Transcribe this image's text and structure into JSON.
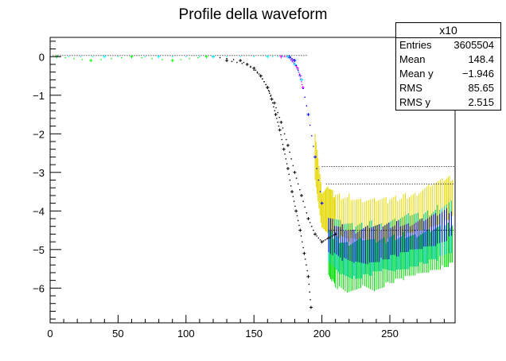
{
  "chart_data": {
    "type": "scatter",
    "title": "Profile della waveform",
    "xlabel": "",
    "ylabel": "",
    "xlim": [
      0,
      298
    ],
    "ylim": [
      -6.9,
      0.5
    ],
    "x_ticks": [
      0,
      50,
      100,
      150,
      200,
      250
    ],
    "y_ticks": [
      0,
      -1,
      -2,
      -3,
      -4,
      -5,
      -6
    ],
    "y_tick_labels": [
      "0",
      "−1",
      "−2",
      "−3",
      "−4",
      "−5",
      "−6"
    ],
    "grid": false,
    "legend": "none",
    "stats": {
      "title": "x10",
      "rows": [
        {
          "key": "Entries",
          "value": "3605504"
        },
        {
          "key": "Mean",
          "value": "148.4"
        },
        {
          "key": "Mean y",
          "value": "−1.946"
        },
        {
          "key": "RMS",
          "value": "85.65"
        },
        {
          "key": "RMS y",
          "value": "2.515"
        }
      ]
    },
    "series": [
      {
        "color": "#000000",
        "marker": "+",
        "x": [
          120,
          140,
          150,
          155,
          160,
          163,
          166,
          169,
          172,
          175,
          178,
          181,
          184,
          187,
          190,
          192
        ],
        "y": [
          0.0,
          -0.1,
          -0.3,
          -0.5,
          -0.8,
          -1.1,
          -1.5,
          -1.9,
          -2.4,
          -2.9,
          -3.5,
          -4.0,
          -4.5,
          -5.1,
          -5.7,
          -6.5
        ]
      },
      {
        "color": "#000000",
        "marker": "+",
        "x": [
          130,
          145,
          155,
          160,
          165,
          170,
          175,
          180,
          185,
          190,
          195,
          200,
          205,
          210
        ],
        "y": [
          -0.1,
          -0.2,
          -0.5,
          -0.8,
          -1.2,
          -1.7,
          -2.3,
          -3.0,
          -3.6,
          -4.2,
          -4.6,
          -4.8,
          -4.7,
          -4.6
        ]
      },
      {
        "color": "#ff00ff",
        "marker": "+",
        "x": [
          170,
          175,
          178,
          180,
          182,
          184,
          186
        ],
        "y": [
          0.0,
          0.0,
          -0.1,
          -0.2,
          -0.3,
          -0.5,
          -0.8
        ]
      },
      {
        "color": "#0000ff",
        "marker": "+",
        "x": [
          176,
          180,
          185,
          190,
          195,
          200
        ],
        "y": [
          0.0,
          -0.1,
          -0.6,
          -1.5,
          -2.6,
          -3.8
        ]
      },
      {
        "color": "#00ffff",
        "marker": "+",
        "x": [
          5,
          40,
          80,
          120,
          160,
          175,
          180,
          185
        ],
        "y": [
          0.0,
          0.0,
          0.0,
          0.0,
          0.0,
          0.0,
          -0.2,
          -0.6
        ]
      },
      {
        "color": "#00ff00",
        "marker": "+",
        "x": [
          5,
          30,
          60,
          90,
          115
        ],
        "y": [
          0.0,
          -0.1,
          0.0,
          -0.1,
          0.0
        ]
      }
    ],
    "band_series": [
      {
        "name": "yellow",
        "color": "#e6d800",
        "x": [
          195,
          200,
          205,
          210,
          220,
          230,
          240,
          250,
          260,
          270,
          280,
          290,
          297
        ],
        "low": [
          -3.2,
          -4.4,
          -4.5,
          -4.6,
          -4.7,
          -4.7,
          -4.8,
          -4.7,
          -4.6,
          -4.5,
          -4.4,
          -4.2,
          -4.1
        ],
        "high": [
          -2.0,
          -3.6,
          -3.5,
          -3.7,
          -3.7,
          -3.8,
          -3.8,
          -3.8,
          -3.7,
          -3.6,
          -3.4,
          -3.3,
          -3.2
        ]
      },
      {
        "name": "green",
        "color": "#00dd00",
        "x": [
          205,
          210,
          220,
          230,
          240,
          250,
          260,
          270,
          280,
          290,
          297
        ],
        "low": [
          -5.6,
          -5.9,
          -6.1,
          -5.9,
          -6.0,
          -5.8,
          -5.7,
          -5.6,
          -5.5,
          -5.4,
          -5.3
        ],
        "high": [
          -4.6,
          -4.8,
          -4.9,
          -4.8,
          -4.9,
          -4.8,
          -4.7,
          -4.7,
          -4.6,
          -4.5,
          -4.4
        ]
      },
      {
        "name": "cyan",
        "color": "#00cccc",
        "x": [
          205,
          215,
          225,
          235,
          245,
          255,
          265,
          275,
          285,
          297
        ],
        "low": [
          -5.3,
          -5.6,
          -5.7,
          -5.6,
          -5.5,
          -5.5,
          -5.4,
          -5.3,
          -5.2,
          -5.0
        ],
        "high": [
          -4.2,
          -4.4,
          -4.5,
          -4.4,
          -4.4,
          -4.3,
          -4.2,
          -4.2,
          -4.0,
          -3.8
        ]
      },
      {
        "name": "blue",
        "color": "#0000ee",
        "x": [
          205,
          215,
          225,
          235,
          245,
          255,
          265,
          275,
          285,
          297
        ],
        "low": [
          -5.0,
          -5.2,
          -5.3,
          -5.3,
          -5.2,
          -5.1,
          -5.0,
          -4.9,
          -4.8,
          -4.6
        ],
        "high": [
          -4.3,
          -4.5,
          -4.6,
          -4.5,
          -4.5,
          -4.4,
          -4.4,
          -4.3,
          -4.2,
          -4.0
        ]
      }
    ],
    "flat_lines": [
      {
        "color": "#000000",
        "y": -2.85,
        "x_start": 200,
        "x_end": 298
      },
      {
        "color": "#000000",
        "y": -3.3,
        "x_start": 203,
        "x_end": 298
      },
      {
        "color": "#000000",
        "y": -4.5,
        "x_start": 205,
        "x_end": 298
      }
    ]
  }
}
